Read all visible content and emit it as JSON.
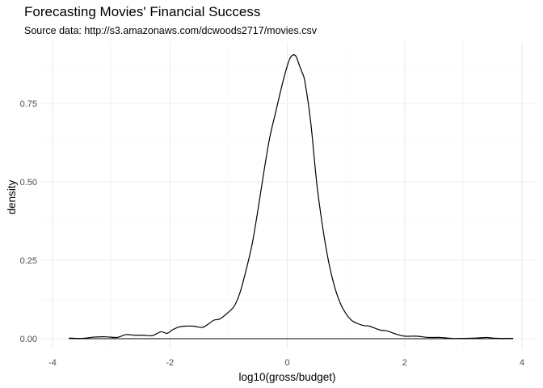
{
  "title": "Forecasting Movies' Financial Success",
  "subtitle": "Source data: http://s3.amazonaws.com/dcwoods2717/movies.csv",
  "chart_data": {
    "type": "line",
    "xlabel": "log10(gross/budget)",
    "ylabel": "density",
    "xlim": [
      -4,
      4
    ],
    "ylim": [
      0,
      0.9
    ],
    "xticks": [
      -4,
      -2,
      0,
      2,
      4
    ],
    "yticks": [
      0.0,
      0.25,
      0.5,
      0.75
    ],
    "ytick_labels": [
      "0.00",
      "0.25",
      "0.50",
      "0.75"
    ],
    "xtick_labels": [
      "-4",
      "-2",
      "0",
      "2",
      "4"
    ],
    "grid": true,
    "line_color": "#000000",
    "series": [
      {
        "x": [
          -3.72,
          -3.5,
          -3.3,
          -3.1,
          -2.9,
          -2.75,
          -2.6,
          -2.45,
          -2.3,
          -2.15,
          -2.05,
          -1.95,
          -1.85,
          -1.75,
          -1.6,
          -1.45,
          -1.35,
          -1.25,
          -1.15,
          -1.0,
          -0.9,
          -0.8,
          -0.7,
          -0.6,
          -0.5,
          -0.4,
          -0.3,
          -0.2,
          -0.1,
          0.0,
          0.05,
          0.1,
          0.15,
          0.2,
          0.25,
          0.3,
          0.4,
          0.5,
          0.6,
          0.7,
          0.8,
          0.9,
          1.0,
          1.1,
          1.2,
          1.3,
          1.4,
          1.5,
          1.6,
          1.7,
          1.85,
          2.0,
          2.2,
          2.4,
          2.6,
          2.8,
          3.0,
          3.2,
          3.4,
          3.5,
          3.7,
          3.85
        ],
        "y": [
          0.002,
          0.001,
          0.005,
          0.006,
          0.004,
          0.013,
          0.011,
          0.011,
          0.01,
          0.022,
          0.017,
          0.029,
          0.037,
          0.04,
          0.04,
          0.036,
          0.046,
          0.059,
          0.063,
          0.085,
          0.105,
          0.15,
          0.22,
          0.3,
          0.41,
          0.53,
          0.64,
          0.72,
          0.8,
          0.87,
          0.895,
          0.905,
          0.9,
          0.875,
          0.85,
          0.82,
          0.69,
          0.5,
          0.36,
          0.25,
          0.17,
          0.115,
          0.08,
          0.058,
          0.048,
          0.042,
          0.04,
          0.033,
          0.027,
          0.025,
          0.015,
          0.008,
          0.008,
          0.004,
          0.004,
          0.001,
          0.001,
          0.002,
          0.004,
          0.002,
          0.001,
          0.001
        ]
      }
    ]
  }
}
